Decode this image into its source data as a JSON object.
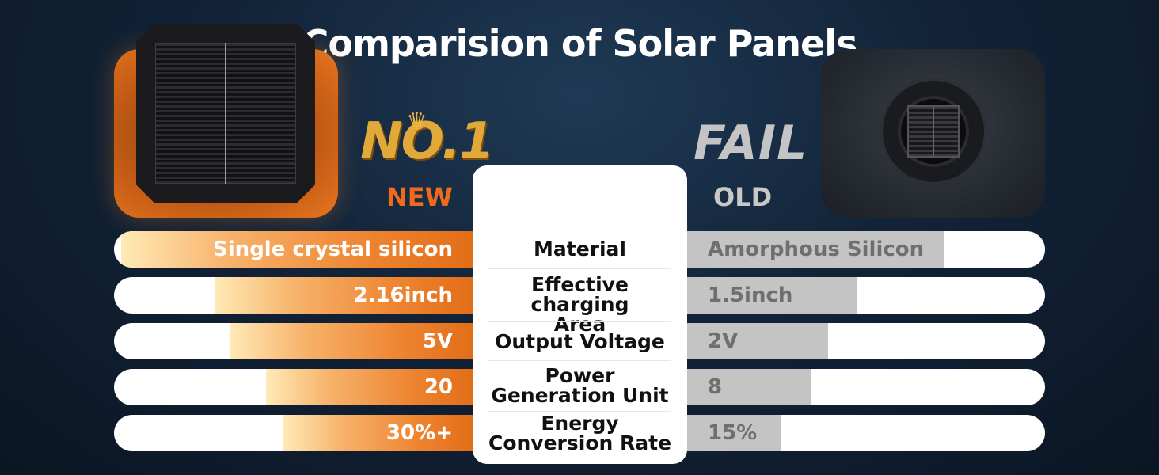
{
  "title": "Comparision of Solar Panels",
  "new": {
    "rank_text": "NO.1",
    "label": "NEW",
    "accent": "#e26d17"
  },
  "old": {
    "verdict_text": "FAIL",
    "label": "OLD",
    "accent": "#c4c4c4"
  },
  "rows": [
    {
      "feature": "Material",
      "new_value": "Single crystal silicon",
      "old_value": "Amorphous Silicon",
      "new_level": 0.98,
      "old_level": 0.72
    },
    {
      "feature": "Effective charging Area",
      "new_value": "2.16inch",
      "old_value": "1.5inch",
      "new_level": 0.72,
      "old_level": 0.48
    },
    {
      "feature": "Output Voltage",
      "new_value": "5V",
      "old_value": "2V",
      "new_level": 0.68,
      "old_level": 0.4
    },
    {
      "feature": "Power Generation Unit",
      "new_value": "20",
      "old_value": "8",
      "new_level": 0.58,
      "old_level": 0.35
    },
    {
      "feature": "Energy Conversion Rate",
      "new_value": "30%+",
      "old_value": "15%",
      "new_level": 0.53,
      "old_level": 0.27
    }
  ],
  "icons": {
    "crown": "crown-icon",
    "new_panel": "square-solar-panel-icon",
    "old_panel": "round-solar-panel-icon"
  }
}
